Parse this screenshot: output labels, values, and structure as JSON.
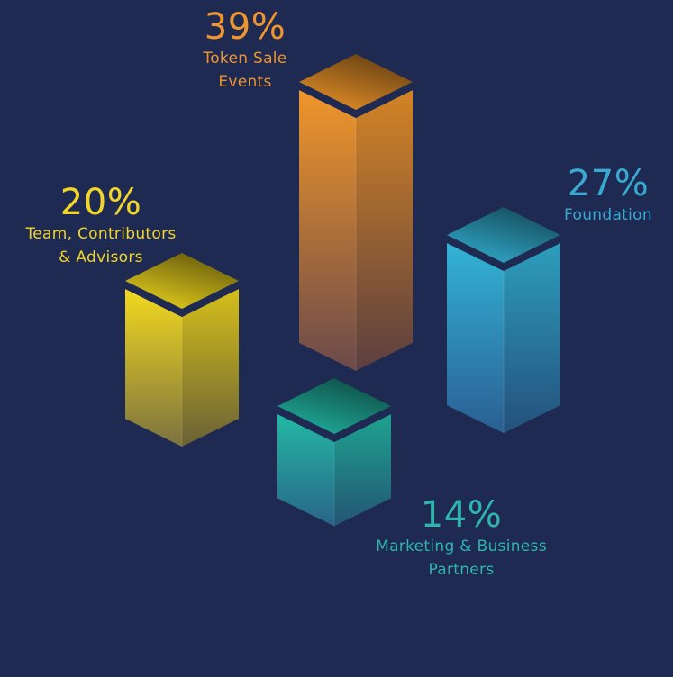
{
  "chart_data": {
    "type": "bar",
    "style": "3d-isometric-columns",
    "categories": [
      "Token Sale Events",
      "Team, Contributors & Advisors",
      "Foundation",
      "Marketing & Business Partners"
    ],
    "values": [
      39,
      20,
      27,
      14
    ],
    "unit": "%",
    "items": [
      {
        "value": 39,
        "value_label": "39%",
        "label_lines": [
          "Token Sale",
          "Events"
        ],
        "color": "#f0962a",
        "bottom_color": "#6b4a4a",
        "text_color": "#ee9530"
      },
      {
        "value": 20,
        "value_label": "20%",
        "label_lines": [
          "Team, Contributors",
          "& Advisors"
        ],
        "color": "#f2d91e",
        "bottom_color": "#7c7240",
        "text_color": "#f2d52a"
      },
      {
        "value": 27,
        "value_label": "27%",
        "label_lines": [
          "Foundation"
        ],
        "color": "#33b3d6",
        "bottom_color": "#2a5e92",
        "text_color": "#39a9d2"
      },
      {
        "value": 14,
        "value_label": "14%",
        "label_lines": [
          "Marketing & Business",
          "Partners"
        ],
        "color": "#22b8a4",
        "bottom_color": "#2a6488",
        "text_color": "#2fb4ae"
      }
    ]
  }
}
